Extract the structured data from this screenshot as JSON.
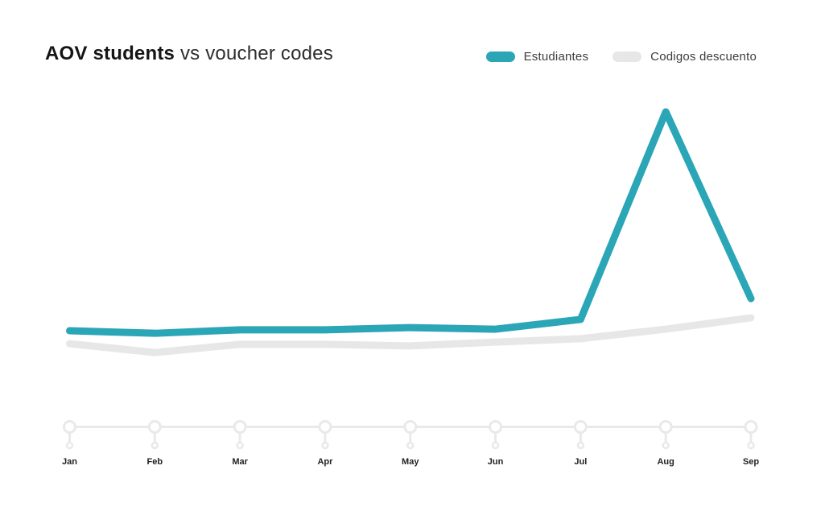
{
  "page": {
    "background": "#ffffff"
  },
  "header": {
    "title_bold": "AOV students",
    "title_regular": " vs voucher codes"
  },
  "legend": {
    "items": [
      {
        "label": "Estudiantes"
      },
      {
        "label": "Codigos descuento"
      }
    ]
  },
  "chart_data": {
    "type": "line",
    "title": "AOV students vs voucher codes",
    "categories": [
      "Jan",
      "Feb",
      "Mar",
      "Apr",
      "May",
      "Jun",
      "Jul",
      "Aug",
      "Sep"
    ],
    "series": [
      {
        "name": "Estudiantes",
        "color": "#2AA6B7",
        "values": [
          30.6,
          29.8,
          30.9,
          30.9,
          31.6,
          31.1,
          34.2,
          100,
          40.8
        ]
      },
      {
        "name": "Codigos descuento",
        "color": "#E7E7E7",
        "values": [
          26.5,
          23.7,
          26.3,
          26.3,
          25.8,
          27.0,
          28.1,
          31.1,
          34.7
        ]
      }
    ],
    "xlabel": "",
    "ylabel": "",
    "y_axis_visible": false,
    "y_units": "relative (no axis labels shown; peak normalized to 100)",
    "ylim": [
      0,
      105
    ],
    "grid": false,
    "legend_position": "top-right",
    "x_axis_style": "timeline with circular ticks",
    "axis_color": "#E9E9E9",
    "label_color": "#222222"
  }
}
